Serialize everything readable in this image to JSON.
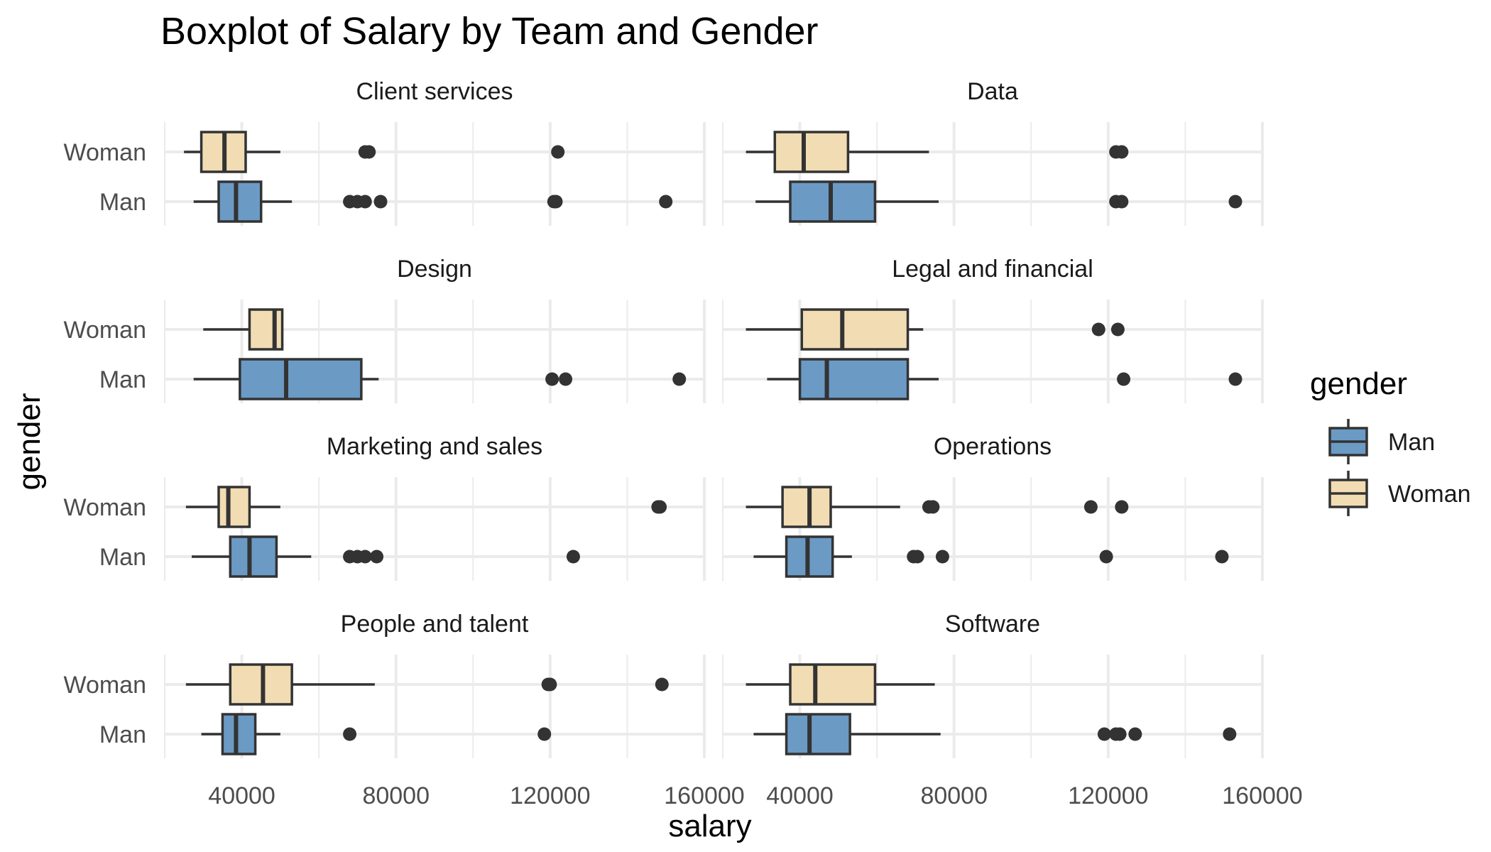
{
  "chart_data": {
    "type": "boxplot",
    "title": "Boxplot of Salary by Team and Gender",
    "xlabel": "salary",
    "ylabel": "gender",
    "xlim": [
      20000,
      160000
    ],
    "x_ticks": [
      "40000",
      "80000",
      "120000",
      "160000"
    ],
    "x_tick_values": [
      40000,
      80000,
      120000,
      160000
    ],
    "categories": [
      "Woman",
      "Man"
    ],
    "legend": {
      "title": "gender",
      "placement": "right",
      "entries": [
        {
          "label": "Man",
          "color": "#6b9ac4"
        },
        {
          "label": "Woman",
          "color": "#f2dcb3"
        }
      ]
    },
    "colors": {
      "Man": "#6b9ac4",
      "Woman": "#f2dcb3",
      "outline": "#333333",
      "grid": "#ebebeb"
    },
    "grid": true,
    "facets": [
      {
        "team": "Client services",
        "Woman": {
          "whisker_low": 25000,
          "q1": 29500,
          "median": 35500,
          "q3": 41000,
          "whisker_high": 50000,
          "outliers": [
            72000,
            73000,
            122000
          ]
        },
        "Man": {
          "whisker_low": 27500,
          "q1": 34000,
          "median": 38500,
          "q3": 45000,
          "whisker_high": 53000,
          "outliers": [
            68000,
            70000,
            72000,
            76000,
            121000,
            121500,
            150000
          ]
        }
      },
      {
        "team": "Data",
        "Woman": {
          "whisker_low": 26000,
          "q1": 33500,
          "median": 41000,
          "q3": 52500,
          "whisker_high": 73500,
          "outliers": [
            122000,
            123500
          ]
        },
        "Man": {
          "whisker_low": 28500,
          "q1": 37500,
          "median": 48000,
          "q3": 59500,
          "whisker_high": 76000,
          "outliers": [
            122000,
            123500,
            153000
          ]
        }
      },
      {
        "team": "Design",
        "Woman": {
          "whisker_low": 30000,
          "q1": 42000,
          "median": 48500,
          "q3": 50500,
          "whisker_high": 50500,
          "outliers": []
        },
        "Man": {
          "whisker_low": 27500,
          "q1": 39500,
          "median": 51500,
          "q3": 71000,
          "whisker_high": 75500,
          "outliers": [
            120500,
            124000,
            153500
          ]
        }
      },
      {
        "team": "Legal and financial",
        "Woman": {
          "whisker_low": 26000,
          "q1": 40500,
          "median": 51000,
          "q3": 68000,
          "whisker_high": 72000,
          "outliers": [
            117500,
            122500
          ]
        },
        "Man": {
          "whisker_low": 31500,
          "q1": 40000,
          "median": 47000,
          "q3": 68000,
          "whisker_high": 76000,
          "outliers": [
            124000,
            153000
          ]
        }
      },
      {
        "team": "Marketing and sales",
        "Woman": {
          "whisker_low": 25500,
          "q1": 34000,
          "median": 36500,
          "q3": 42000,
          "whisker_high": 50000,
          "outliers": [
            148000,
            148500
          ]
        },
        "Man": {
          "whisker_low": 27000,
          "q1": 37000,
          "median": 42000,
          "q3": 49000,
          "whisker_high": 58000,
          "outliers": [
            68000,
            70000,
            72000,
            75000,
            126000
          ]
        }
      },
      {
        "team": "Operations",
        "Woman": {
          "whisker_low": 26000,
          "q1": 35500,
          "median": 42500,
          "q3": 48000,
          "whisker_high": 66000,
          "outliers": [
            73500,
            74500,
            115500,
            123500
          ]
        },
        "Man": {
          "whisker_low": 28000,
          "q1": 36500,
          "median": 42000,
          "q3": 48500,
          "whisker_high": 53500,
          "outliers": [
            69500,
            70500,
            77000,
            119500,
            149500
          ]
        }
      },
      {
        "team": "People and talent",
        "Woman": {
          "whisker_low": 25500,
          "q1": 37000,
          "median": 45500,
          "q3": 53000,
          "whisker_high": 74500,
          "outliers": [
            119500,
            120000,
            149000
          ]
        },
        "Man": {
          "whisker_low": 29500,
          "q1": 35000,
          "median": 38500,
          "q3": 43500,
          "whisker_high": 50000,
          "outliers": [
            68000,
            118500
          ]
        }
      },
      {
        "team": "Software",
        "Woman": {
          "whisker_low": 26000,
          "q1": 37500,
          "median": 44000,
          "q3": 59500,
          "whisker_high": 75000,
          "outliers": []
        },
        "Man": {
          "whisker_low": 28000,
          "q1": 36500,
          "median": 42500,
          "q3": 53000,
          "whisker_high": 76500,
          "outliers": [
            119000,
            122000,
            123000,
            127000,
            151500
          ]
        }
      }
    ]
  }
}
